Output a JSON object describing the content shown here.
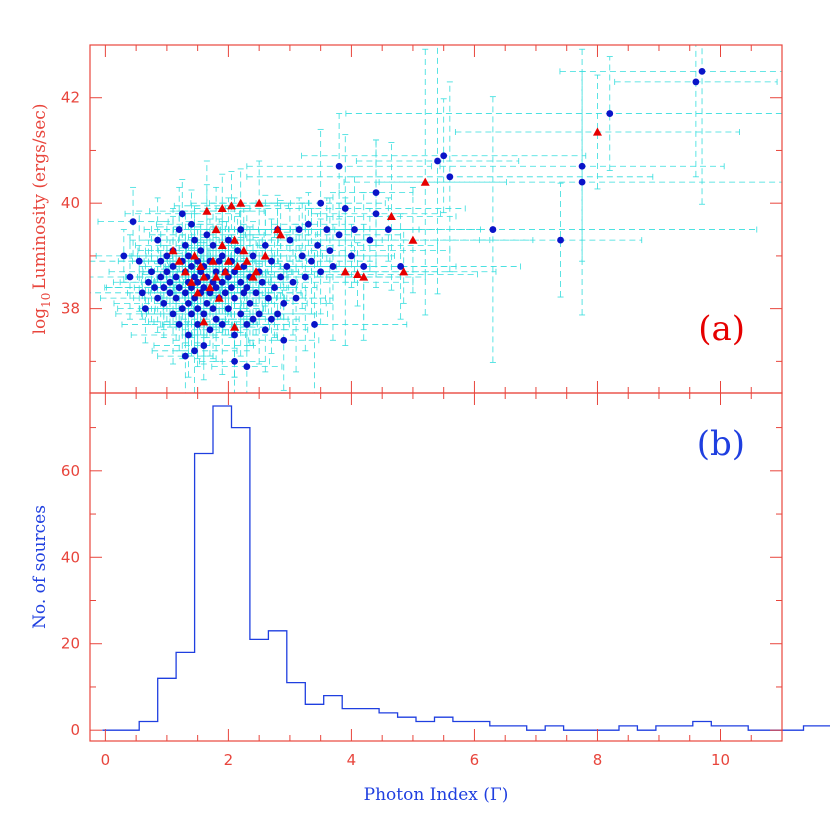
{
  "colors": {
    "frame": "#e8453c",
    "error_bar": "#33dddd",
    "circle": "#0a14c8",
    "triangle": "#e60000",
    "histogram": "#1f3fe0",
    "xlabel": "#1f3fe0",
    "ylabel_top": "#e8453c",
    "ylabel_bottom": "#1f3fe0"
  },
  "chart_data": [
    {
      "type": "scatter",
      "panel_label": "(a)",
      "ylabel_main": "Luminosity (ergs/sec)",
      "ylabel_prefix": "log",
      "ylabel_subscript": "10",
      "xlim": [
        -0.25,
        11.0
      ],
      "ylim": [
        36.4,
        43.0
      ],
      "x_ticks": [
        0,
        2,
        4,
        6,
        8,
        10
      ],
      "y_ticks": [
        38,
        40,
        42
      ],
      "y_tick_labels": [
        "38",
        "40",
        "42"
      ],
      "grid": false,
      "series": [
        {
          "marker": "circle",
          "points": [
            [
              0.3,
              39.0
            ],
            [
              0.45,
              39.65
            ],
            [
              0.4,
              38.6
            ],
            [
              0.55,
              38.9
            ],
            [
              0.6,
              38.3
            ],
            [
              0.65,
              38.0
            ],
            [
              0.7,
              38.5
            ],
            [
              0.75,
              38.7
            ],
            [
              0.8,
              38.4
            ],
            [
              0.85,
              38.2
            ],
            [
              0.85,
              39.3
            ],
            [
              0.9,
              38.6
            ],
            [
              0.9,
              38.9
            ],
            [
              0.95,
              38.1
            ],
            [
              0.95,
              38.4
            ],
            [
              1.0,
              38.7
            ],
            [
              1.0,
              39.0
            ],
            [
              1.05,
              38.3
            ],
            [
              1.05,
              38.5
            ],
            [
              1.1,
              37.9
            ],
            [
              1.1,
              38.8
            ],
            [
              1.1,
              39.1
            ],
            [
              1.15,
              38.2
            ],
            [
              1.15,
              38.6
            ],
            [
              1.2,
              37.7
            ],
            [
              1.2,
              38.4
            ],
            [
              1.2,
              39.5
            ],
            [
              1.25,
              38.0
            ],
            [
              1.25,
              38.9
            ],
            [
              1.25,
              39.8
            ],
            [
              1.3,
              37.1
            ],
            [
              1.3,
              38.3
            ],
            [
              1.3,
              38.7
            ],
            [
              1.3,
              39.2
            ],
            [
              1.35,
              37.5
            ],
            [
              1.35,
              38.1
            ],
            [
              1.35,
              38.5
            ],
            [
              1.35,
              39.0
            ],
            [
              1.4,
              37.9
            ],
            [
              1.4,
              38.4
            ],
            [
              1.4,
              38.8
            ],
            [
              1.4,
              39.6
            ],
            [
              1.45,
              37.2
            ],
            [
              1.45,
              38.2
            ],
            [
              1.45,
              38.6
            ],
            [
              1.45,
              39.3
            ],
            [
              1.5,
              37.7
            ],
            [
              1.5,
              38.0
            ],
            [
              1.5,
              38.5
            ],
            [
              1.5,
              38.9
            ],
            [
              1.55,
              38.3
            ],
            [
              1.55,
              38.7
            ],
            [
              1.55,
              39.1
            ],
            [
              1.6,
              37.3
            ],
            [
              1.6,
              37.9
            ],
            [
              1.6,
              38.4
            ],
            [
              1.6,
              38.8
            ],
            [
              1.65,
              38.1
            ],
            [
              1.65,
              38.6
            ],
            [
              1.65,
              39.4
            ],
            [
              1.7,
              37.6
            ],
            [
              1.7,
              38.3
            ],
            [
              1.7,
              38.9
            ],
            [
              1.75,
              38.0
            ],
            [
              1.75,
              38.5
            ],
            [
              1.75,
              39.2
            ],
            [
              1.8,
              37.8
            ],
            [
              1.8,
              38.4
            ],
            [
              1.8,
              38.7
            ],
            [
              1.85,
              38.2
            ],
            [
              1.85,
              38.9
            ],
            [
              1.9,
              37.7
            ],
            [
              1.9,
              38.5
            ],
            [
              1.9,
              39.0
            ],
            [
              1.95,
              38.3
            ],
            [
              1.95,
              38.7
            ],
            [
              2.0,
              38.0
            ],
            [
              2.0,
              38.6
            ],
            [
              2.0,
              39.3
            ],
            [
              2.05,
              38.4
            ],
            [
              2.05,
              38.9
            ],
            [
              2.1,
              37.0
            ],
            [
              2.1,
              37.5
            ],
            [
              2.1,
              38.2
            ],
            [
              2.1,
              38.7
            ],
            [
              2.15,
              39.1
            ],
            [
              2.2,
              37.9
            ],
            [
              2.2,
              38.5
            ],
            [
              2.2,
              39.5
            ],
            [
              2.25,
              38.3
            ],
            [
              2.25,
              38.8
            ],
            [
              2.3,
              36.9
            ],
            [
              2.3,
              37.7
            ],
            [
              2.3,
              38.4
            ],
            [
              2.35,
              38.1
            ],
            [
              2.35,
              38.6
            ],
            [
              2.4,
              37.8
            ],
            [
              2.4,
              39.0
            ],
            [
              2.45,
              38.3
            ],
            [
              2.5,
              37.9
            ],
            [
              2.5,
              38.7
            ],
            [
              2.55,
              38.5
            ],
            [
              2.6,
              37.6
            ],
            [
              2.6,
              39.2
            ],
            [
              2.65,
              38.2
            ],
            [
              2.7,
              37.8
            ],
            [
              2.7,
              38.9
            ],
            [
              2.75,
              38.4
            ],
            [
              2.8,
              37.9
            ],
            [
              2.8,
              39.5
            ],
            [
              2.85,
              38.6
            ],
            [
              2.9,
              37.4
            ],
            [
              2.9,
              38.1
            ],
            [
              2.95,
              38.8
            ],
            [
              3.0,
              39.3
            ],
            [
              3.05,
              38.5
            ],
            [
              3.1,
              38.2
            ],
            [
              3.15,
              39.5
            ],
            [
              3.2,
              39.0
            ],
            [
              3.25,
              38.6
            ],
            [
              3.3,
              39.6
            ],
            [
              3.35,
              38.9
            ],
            [
              3.4,
              37.7
            ],
            [
              3.45,
              39.2
            ],
            [
              3.5,
              38.7
            ],
            [
              3.5,
              40.0
            ],
            [
              3.6,
              39.5
            ],
            [
              3.65,
              39.1
            ],
            [
              3.7,
              38.8
            ],
            [
              3.8,
              39.4
            ],
            [
              3.8,
              40.7
            ],
            [
              3.9,
              39.9
            ],
            [
              4.0,
              39.0
            ],
            [
              4.05,
              39.5
            ],
            [
              4.2,
              38.8
            ],
            [
              4.3,
              39.3
            ],
            [
              4.4,
              40.2
            ],
            [
              4.4,
              39.8
            ],
            [
              4.6,
              39.5
            ],
            [
              4.8,
              38.8
            ],
            [
              5.4,
              40.8
            ],
            [
              5.5,
              40.9
            ],
            [
              5.6,
              40.5
            ],
            [
              6.3,
              39.5
            ],
            [
              7.4,
              39.3
            ],
            [
              7.75,
              40.7
            ],
            [
              7.75,
              40.4
            ],
            [
              8.2,
              41.7
            ],
            [
              9.6,
              42.3
            ],
            [
              9.7,
              42.5
            ]
          ]
        },
        {
          "marker": "triangle",
          "points": [
            [
              1.1,
              39.1
            ],
            [
              1.2,
              38.9
            ],
            [
              1.3,
              38.7
            ],
            [
              1.4,
              38.5
            ],
            [
              1.45,
              39.0
            ],
            [
              1.5,
              38.3
            ],
            [
              1.55,
              38.8
            ],
            [
              1.6,
              38.6
            ],
            [
              1.6,
              37.75
            ],
            [
              1.65,
              39.85
            ],
            [
              1.7,
              38.4
            ],
            [
              1.75,
              38.9
            ],
            [
              1.8,
              39.5
            ],
            [
              1.8,
              38.6
            ],
            [
              1.85,
              38.2
            ],
            [
              1.9,
              39.9
            ],
            [
              1.9,
              39.2
            ],
            [
              1.95,
              38.7
            ],
            [
              2.0,
              38.9
            ],
            [
              2.05,
              39.95
            ],
            [
              2.1,
              39.3
            ],
            [
              2.1,
              37.65
            ],
            [
              2.15,
              38.8
            ],
            [
              2.2,
              40.0
            ],
            [
              2.25,
              39.1
            ],
            [
              2.3,
              38.9
            ],
            [
              2.4,
              38.6
            ],
            [
              2.45,
              38.7
            ],
            [
              2.5,
              40.0
            ],
            [
              2.6,
              39.0
            ],
            [
              2.8,
              39.5
            ],
            [
              2.85,
              39.4
            ],
            [
              3.9,
              38.7
            ],
            [
              4.1,
              38.65
            ],
            [
              4.2,
              38.6
            ],
            [
              4.65,
              39.75
            ],
            [
              4.85,
              38.7
            ],
            [
              5.0,
              39.3
            ],
            [
              5.2,
              40.4
            ],
            [
              8.0,
              41.35
            ]
          ]
        }
      ]
    },
    {
      "type": "bar",
      "subtype": "step-histogram",
      "panel_label": "(b)",
      "xlabel": "Photon Index (Γ)",
      "ylabel": "No. of sources",
      "xlim": [
        -0.25,
        11.0
      ],
      "ylim": [
        -2.5,
        78
      ],
      "x_ticks": [
        0,
        2,
        4,
        6,
        8,
        10
      ],
      "y_ticks": [
        0,
        20,
        40,
        60
      ],
      "bin_width": 0.3,
      "bin_start": -0.05,
      "counts": [
        0,
        0,
        2,
        12,
        18,
        64,
        75,
        70,
        21,
        23,
        11,
        6,
        8,
        5,
        5,
        4,
        3,
        2,
        3,
        2,
        2,
        1,
        1,
        0,
        1,
        0,
        0,
        0,
        1,
        0,
        1,
        1,
        2,
        1,
        1,
        0,
        0,
        0,
        1,
        1,
        1,
        0,
        0
      ]
    }
  ]
}
